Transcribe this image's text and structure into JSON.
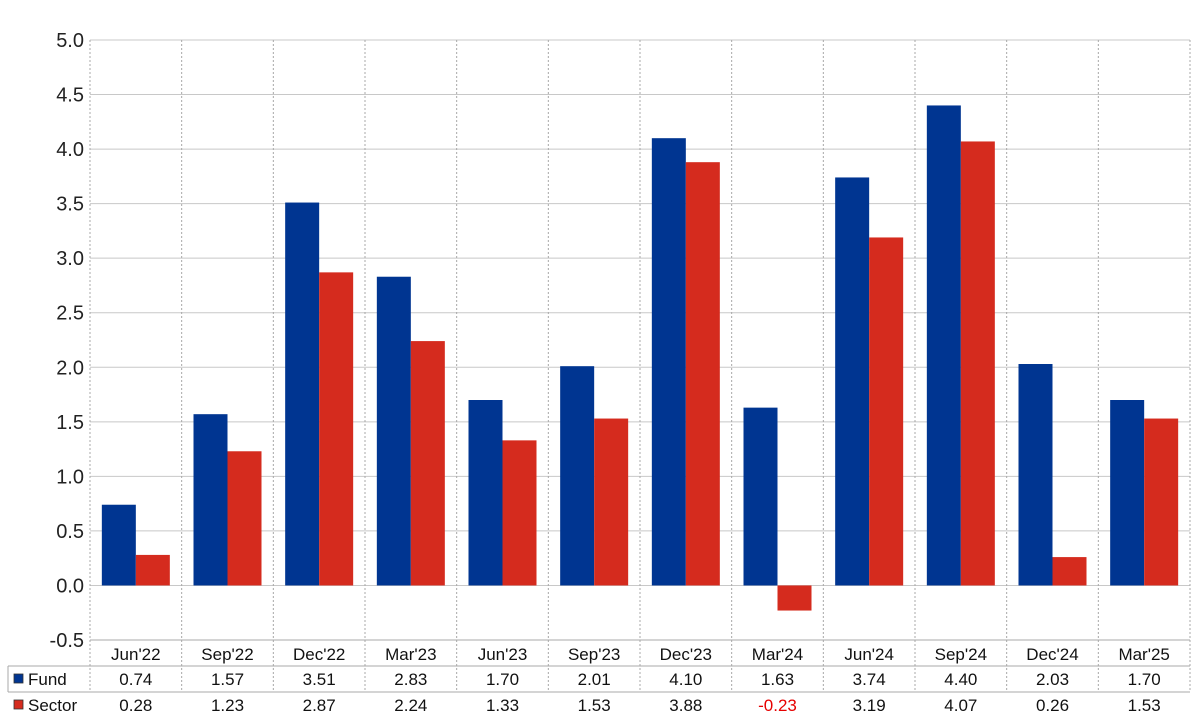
{
  "chart_data": {
    "type": "bar",
    "categories": [
      "Jun'22",
      "Sep'22",
      "Dec'22",
      "Mar'23",
      "Jun'23",
      "Sep'23",
      "Dec'23",
      "Mar'24",
      "Jun'24",
      "Sep'24",
      "Dec'24",
      "Mar'25"
    ],
    "series": [
      {
        "name": "Fund",
        "color": "#003591",
        "values": [
          0.74,
          1.57,
          3.51,
          2.83,
          1.7,
          2.01,
          4.1,
          1.63,
          3.74,
          4.4,
          2.03,
          1.7
        ]
      },
      {
        "name": "Sector",
        "color": "#d52b1e",
        "values": [
          0.28,
          1.23,
          2.87,
          2.24,
          1.33,
          1.53,
          3.88,
          -0.23,
          3.19,
          4.07,
          0.26,
          1.53
        ]
      }
    ],
    "title": "",
    "xlabel": "",
    "ylabel": "",
    "ylim": [
      -0.5,
      5.0
    ],
    "yticks": [
      "-0.5",
      "0.0",
      "0.5",
      "1.0",
      "1.5",
      "2.0",
      "2.5",
      "3.0",
      "3.5",
      "4.0",
      "4.5",
      "5.0"
    ],
    "grid": true,
    "legend": "data-table-bottom",
    "table_values": {
      "Fund": [
        "0.74",
        "1.57",
        "3.51",
        "2.83",
        "1.70",
        "2.01",
        "4.10",
        "1.63",
        "3.74",
        "4.40",
        "2.03",
        "1.70"
      ],
      "Sector": [
        "0.28",
        "1.23",
        "2.87",
        "2.24",
        "1.33",
        "1.53",
        "3.88",
        "-0.23",
        "3.19",
        "4.07",
        "0.26",
        "1.53"
      ]
    },
    "negative_value_color": "#e60000"
  }
}
